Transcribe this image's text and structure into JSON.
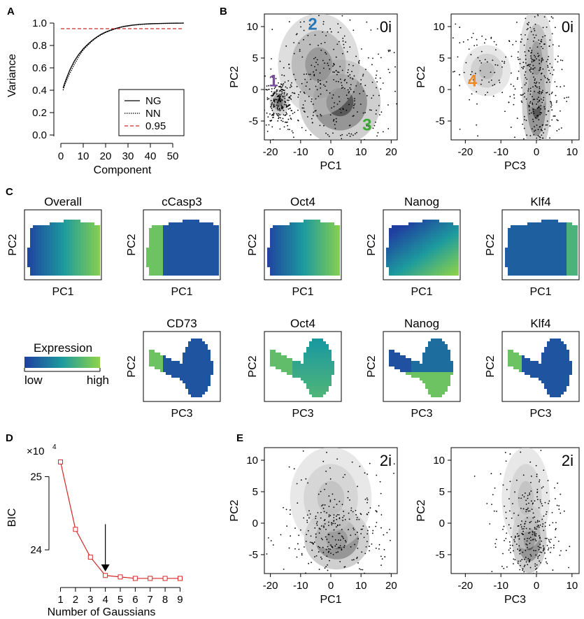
{
  "figure": {
    "panel_letters": [
      "A",
      "B",
      "C",
      "D",
      "E"
    ],
    "colors": {
      "ng": "#000000",
      "nn": "#000000",
      "threshold": "#d62728",
      "bic": "#d62728",
      "cluster1": "#7b4fa0",
      "cluster2": "#2a78b5",
      "cluster3": "#3aaa35",
      "cluster4": "#f08a24",
      "low": "#1f3fa0",
      "mid": "#1d9b9e",
      "high": "#8fd447"
    }
  },
  "chart_data": [
    {
      "id": "A",
      "type": "line",
      "title": "",
      "xlabel": "Component",
      "ylabel": "Variance",
      "xlim": [
        0,
        55
      ],
      "ylim": [
        0,
        1.0
      ],
      "xticks": [
        0,
        10,
        20,
        30,
        40,
        50
      ],
      "yticks": [
        0.0,
        0.2,
        0.4,
        0.6,
        0.8,
        1.0
      ],
      "ytick_labels": [
        "0.0",
        "0.2",
        "0.4",
        "0.6",
        "0.8",
        "1.0"
      ],
      "series": [
        {
          "name": "NG",
          "style": "solid",
          "x": [
            1,
            2,
            4,
            6,
            8,
            10,
            12,
            14,
            16,
            18,
            20,
            22,
            25,
            28,
            32,
            36,
            40,
            45,
            50,
            55
          ],
          "y": [
            0.42,
            0.48,
            0.58,
            0.66,
            0.72,
            0.77,
            0.81,
            0.845,
            0.875,
            0.9,
            0.92,
            0.935,
            0.955,
            0.97,
            0.982,
            0.99,
            0.994,
            0.997,
            0.999,
            1.0
          ]
        },
        {
          "name": "NN",
          "style": "dotted",
          "x": [
            1,
            2,
            4,
            6,
            8,
            10,
            12,
            14,
            16,
            18,
            20,
            22,
            25,
            28,
            32,
            36,
            40,
            45,
            50,
            55
          ],
          "y": [
            0.4,
            0.46,
            0.55,
            0.63,
            0.7,
            0.76,
            0.8,
            0.84,
            0.87,
            0.895,
            0.915,
            0.932,
            0.953,
            0.968,
            0.98,
            0.988,
            0.993,
            0.996,
            0.998,
            1.0
          ]
        },
        {
          "name": "0.95",
          "style": "dashed",
          "color": "#d62728",
          "x": [
            0,
            55
          ],
          "y": [
            0.95,
            0.95
          ]
        }
      ],
      "legend": [
        "NG",
        "NN",
        "0.95"
      ],
      "legend_position": "bottom-right"
    },
    {
      "id": "B1",
      "type": "scatter",
      "corner_label": "0i",
      "xlabel": "PC1",
      "ylabel": "PC2",
      "xlim": [
        -22,
        22
      ],
      "ylim": [
        -8,
        12
      ],
      "xticks": [
        -20,
        -10,
        0,
        10,
        20
      ],
      "yticks": [
        -5,
        0,
        5,
        10
      ],
      "density_centers": [
        {
          "x": 3,
          "y": -2,
          "sx": 5,
          "sy": 2.5,
          "weight": 1.0
        },
        {
          "x": -4,
          "y": 4,
          "sx": 5,
          "sy": 3,
          "weight": 0.55
        },
        {
          "x": -17,
          "y": -2,
          "sx": 1.2,
          "sy": 0.8,
          "weight": 0.8
        }
      ],
      "cluster_labels": [
        {
          "text": "1",
          "x": -19,
          "y": 0.5,
          "color": "#7b4fa0"
        },
        {
          "text": "2",
          "x": -6,
          "y": 9.5,
          "color": "#2a78b5"
        },
        {
          "text": "3",
          "x": 12,
          "y": -6.5,
          "color": "#3aaa35"
        }
      ]
    },
    {
      "id": "B2",
      "type": "scatter",
      "corner_label": "0i",
      "xlabel": "PC3",
      "ylabel": "PC2",
      "xlim": [
        -24,
        12
      ],
      "ylim": [
        -8,
        12
      ],
      "xticks": [
        -20,
        -10,
        0,
        10
      ],
      "yticks": [
        -5,
        0,
        5,
        10
      ],
      "density_centers": [
        {
          "x": 0,
          "y": -2,
          "sx": 1.5,
          "sy": 3,
          "weight": 1.0
        },
        {
          "x": 0,
          "y": 5,
          "sx": 1.8,
          "sy": 3,
          "weight": 0.5
        },
        {
          "x": -14,
          "y": 3,
          "sx": 2.5,
          "sy": 1.5,
          "weight": 0.3
        }
      ],
      "cluster_labels": [
        {
          "text": "4",
          "x": -18,
          "y": 0.5,
          "color": "#f08a24"
        }
      ]
    },
    {
      "id": "C",
      "type": "heatmap",
      "colorbar": {
        "title": "Expression",
        "low": "low",
        "high": "high"
      },
      "row1_xlabel": "PC1",
      "row1_ylabel": "PC2",
      "row2_xlabel": "PC3",
      "row2_ylabel": "PC2",
      "row1": [
        {
          "title": "Overall",
          "gradient": "left-right"
        },
        {
          "title": "cCasp3",
          "gradient": "left-high"
        },
        {
          "title": "Oct4",
          "gradient": "left-right"
        },
        {
          "title": "Nanog",
          "gradient": "bottom-right"
        },
        {
          "title": "Klf4",
          "gradient": "mostly-low"
        }
      ],
      "row2": [
        {
          "title": "CD73",
          "gradient": "left-high"
        },
        {
          "title": "Oct4",
          "gradient": "left-mid"
        },
        {
          "title": "Nanog",
          "gradient": "bottom-high"
        },
        {
          "title": "Klf4",
          "gradient": "left-high"
        }
      ]
    },
    {
      "id": "D",
      "type": "line",
      "xlabel": "Number of Gaussians",
      "ylabel": "BIC",
      "multiplier": "×10",
      "multiplier_exp": "4",
      "xlim": [
        0.6,
        9.4
      ],
      "ylim": [
        23.6,
        25.3
      ],
      "xticks": [
        1,
        2,
        3,
        4,
        5,
        6,
        7,
        8,
        9
      ],
      "yticks": [
        24,
        25
      ],
      "x": [
        1,
        2,
        3,
        4,
        5,
        6,
        7,
        8,
        9
      ],
      "y": [
        25.2,
        24.28,
        23.9,
        23.65,
        23.63,
        23.61,
        23.61,
        23.61,
        23.61
      ],
      "arrow_at": 4
    },
    {
      "id": "E1",
      "type": "scatter",
      "corner_label": "2i",
      "xlabel": "PC1",
      "ylabel": "PC2",
      "xlim": [
        -22,
        22
      ],
      "ylim": [
        -8,
        12
      ],
      "xticks": [
        -20,
        -10,
        0,
        10,
        20
      ],
      "yticks": [
        -5,
        0,
        5,
        10
      ],
      "density_centers": [
        {
          "x": 2,
          "y": -2.5,
          "sx": 4,
          "sy": 1.8,
          "weight": 1.0
        },
        {
          "x": 0,
          "y": 4,
          "sx": 5,
          "sy": 3,
          "weight": 0.25
        }
      ]
    },
    {
      "id": "E2",
      "type": "scatter",
      "corner_label": "2i",
      "xlabel": "PC3",
      "ylabel": "PC2",
      "xlim": [
        -24,
        12
      ],
      "ylim": [
        -8,
        12
      ],
      "xticks": [
        -20,
        -10,
        0,
        10
      ],
      "yticks": [
        -5,
        0,
        5,
        10
      ],
      "density_centers": [
        {
          "x": -2,
          "y": -2.5,
          "sx": 1.8,
          "sy": 2,
          "weight": 1.0
        },
        {
          "x": -3,
          "y": 4,
          "sx": 2.5,
          "sy": 3,
          "weight": 0.25
        }
      ]
    }
  ]
}
